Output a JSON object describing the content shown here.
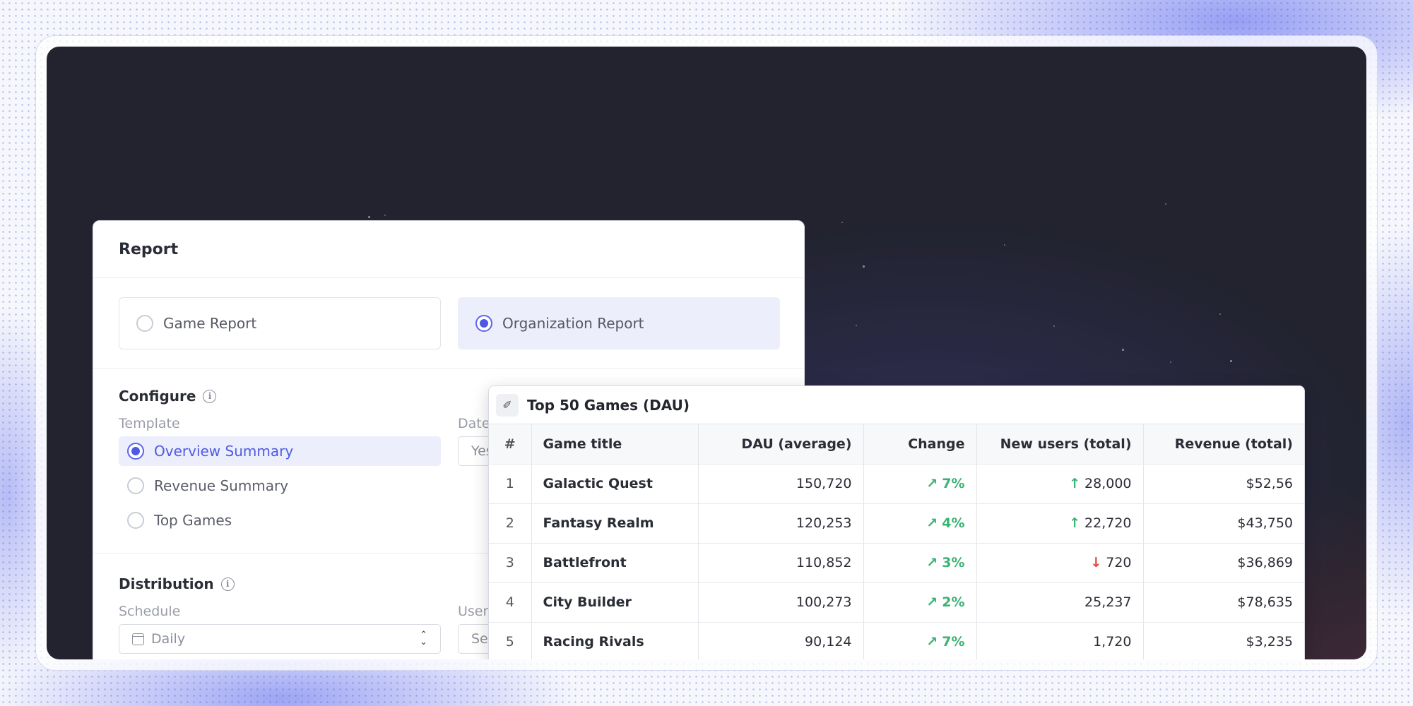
{
  "report": {
    "title": "Report",
    "report_types": [
      {
        "label": "Game Report",
        "selected": false
      },
      {
        "label": "Organization Report",
        "selected": true
      }
    ],
    "configure": {
      "title": "Configure",
      "template_label": "Template",
      "date_label": "Date",
      "date_value": "Yes",
      "templates": [
        {
          "label": "Overview Summary",
          "selected": true
        },
        {
          "label": "Revenue Summary",
          "selected": false
        },
        {
          "label": "Top Games",
          "selected": false
        }
      ]
    },
    "distribution": {
      "title": "Distribution",
      "schedule_label": "Schedule",
      "schedule_value": "Daily",
      "users_label": "User",
      "users_value": "Se"
    }
  },
  "games_table": {
    "title": "Top 50 Games (DAU)",
    "columns": [
      "#",
      "Game title",
      "DAU (average)",
      "Change",
      "New users (total)",
      "Revenue (total)"
    ],
    "rows": [
      {
        "rank": "1",
        "title": "Galactic Quest",
        "dau": "150,720",
        "change": "7%",
        "new_users": "28,000",
        "new_trend": "up",
        "revenue": "$52,56"
      },
      {
        "rank": "2",
        "title": "Fantasy Realm",
        "dau": "120,253",
        "change": "4%",
        "new_users": "22,720",
        "new_trend": "up",
        "revenue": "$43,750"
      },
      {
        "rank": "3",
        "title": "Battlefront",
        "dau": "110,852",
        "change": "3%",
        "new_users": "720",
        "new_trend": "down",
        "revenue": "$36,869"
      },
      {
        "rank": "4",
        "title": "City Builder",
        "dau": "100,273",
        "change": "2%",
        "new_users": "25,237",
        "new_trend": "none",
        "revenue": "$78,635"
      },
      {
        "rank": "5",
        "title": "Racing Rivals",
        "dau": "90,124",
        "change": "7%",
        "new_users": "1,720",
        "new_trend": "none",
        "revenue": "$3,235"
      }
    ]
  },
  "colors": {
    "accent": "#4f5ae3",
    "positive": "#3bb273",
    "negative": "#e0463c",
    "scene_bg": "#22232f"
  }
}
